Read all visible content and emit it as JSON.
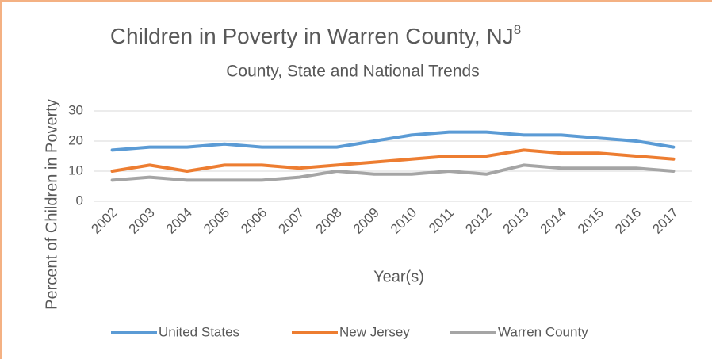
{
  "chart_data": {
    "type": "line",
    "title": "Children in Poverty in Warren County, NJ",
    "title_superscript": "8",
    "subtitle": "County, State and National Trends",
    "x_label": "Year(s)",
    "y_label": "Percent of Children in Poverty",
    "categories": [
      "2002",
      "2003",
      "2004",
      "2005",
      "2006",
      "2007",
      "2008",
      "2009",
      "2010",
      "2011",
      "2012",
      "2013",
      "2014",
      "2015",
      "2016",
      "2017"
    ],
    "series": [
      {
        "name": "United States",
        "color": "#5b9bd5",
        "values": [
          17,
          18,
          18,
          19,
          18,
          18,
          18,
          20,
          22,
          23,
          23,
          22,
          22,
          21,
          20,
          18
        ]
      },
      {
        "name": "New Jersey",
        "color": "#ed7d31",
        "values": [
          10,
          12,
          10,
          12,
          12,
          11,
          12,
          13,
          14,
          15,
          15,
          17,
          16,
          16,
          15,
          14
        ]
      },
      {
        "name": "Warren County",
        "color": "#a5a5a5",
        "values": [
          7,
          8,
          7,
          7,
          7,
          8,
          10,
          9,
          9,
          10,
          9,
          12,
          11,
          11,
          11,
          10
        ]
      }
    ],
    "ylim": [
      0,
      30
    ],
    "yticks": [
      0,
      10,
      20,
      30
    ],
    "grid": true,
    "legend": "bottom"
  }
}
